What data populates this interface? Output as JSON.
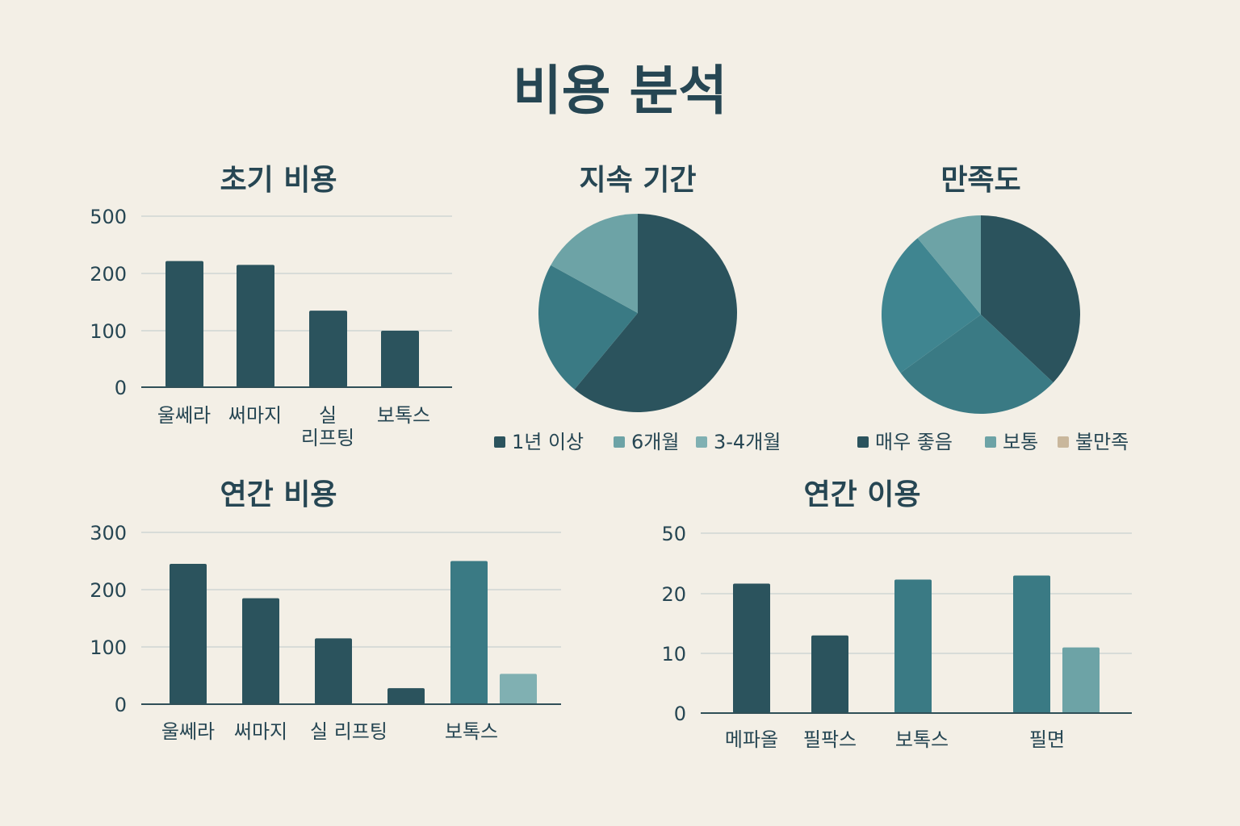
{
  "page_title": "비용 분석",
  "colors": {
    "background": "#f3efe6",
    "text": "#264653",
    "axis": "#2f4f57",
    "grid": "#cfd6d3",
    "dark": "#2b535d",
    "mid": "#3a7a84",
    "light": "#6da3a6",
    "lighter": "#80b0b2",
    "beige": "#c9b79c"
  },
  "chart_data": [
    {
      "id": "initial-cost",
      "type": "bar",
      "title": "초기 비용",
      "yticks": [
        "0",
        "100",
        "200",
        "500"
      ],
      "categories": [
        [
          "울쎄라"
        ],
        [
          "써마지"
        ],
        [
          "실",
          "리프팅"
        ],
        [
          "보톡스"
        ]
      ],
      "values": [
        265,
        245,
        135,
        100
      ],
      "note": "y axis ticks are unevenly spaced (0,100,200,500); values are approximate positions on that scale"
    },
    {
      "id": "duration",
      "type": "pie",
      "title": "지속 기간",
      "slices": [
        {
          "label": "1년 이상",
          "value": 61
        },
        {
          "label": "6개월",
          "value": 22
        },
        {
          "label": "3-4개월",
          "value": 17
        }
      ],
      "legend": [
        "1년 이상",
        "6개월",
        "3-4개월"
      ]
    },
    {
      "id": "satisfaction",
      "type": "pie",
      "title": "만족도",
      "slices": [
        {
          "label": "매우 좋음",
          "value": 37
        },
        {
          "label": "",
          "value": 28
        },
        {
          "label": "보통",
          "value": 24
        },
        {
          "label": "",
          "value": 11
        }
      ],
      "legend": [
        "매우 좋음",
        "보통",
        "불만족"
      ]
    },
    {
      "id": "annual-cost",
      "type": "bar",
      "title": "연간 비용",
      "yticks": [
        "0",
        "100",
        "200",
        "300"
      ],
      "categories": [
        [
          "울쎄라"
        ],
        [
          "써마지"
        ],
        [
          "실 리프팅"
        ],
        [
          ""
        ],
        [
          "보톡스"
        ],
        [
          ""
        ]
      ],
      "values": [
        245,
        185,
        115,
        28,
        250,
        53
      ]
    },
    {
      "id": "annual-usage",
      "type": "bar",
      "title": "연간 이용",
      "yticks": [
        "0",
        "10",
        "20",
        "50"
      ],
      "categories": [
        [
          "메파올"
        ],
        [
          "필팍스"
        ],
        [
          "보톡스"
        ],
        [
          "필면"
        ],
        [
          ""
        ]
      ],
      "values": [
        25,
        13,
        27,
        29,
        11
      ],
      "note": "y axis ticks are unevenly spaced (0,10,20,50)"
    }
  ]
}
